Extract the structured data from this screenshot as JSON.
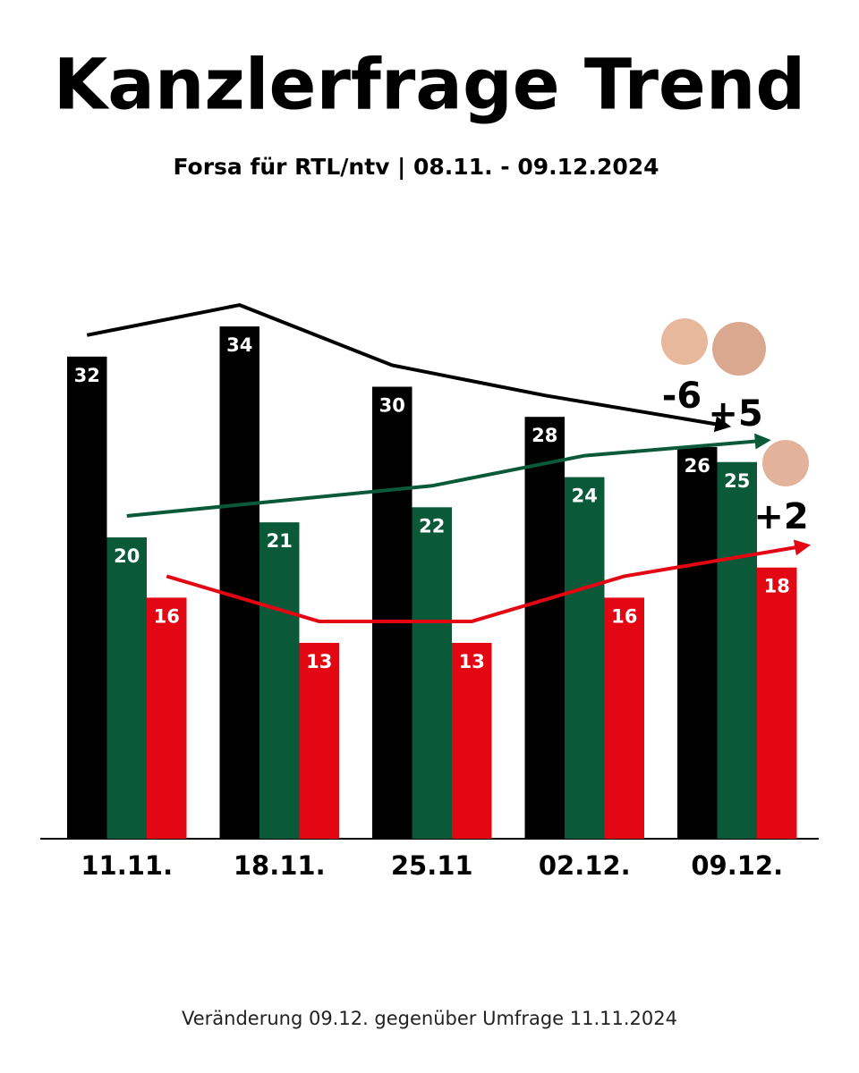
{
  "chart_data": {
    "type": "bar",
    "title": "Kanzlerfrage Trend",
    "subtitle": "Forsa für RTL/ntv | 08.11. - 09.12.2024",
    "categories": [
      "11.11.",
      "18.11.",
      "25.11",
      "02.12.",
      "09.12."
    ],
    "series": [
      {
        "color": "#000000",
        "values": [
          32,
          34,
          30,
          28,
          26
        ]
      },
      {
        "color": "#0a5a3a",
        "values": [
          20,
          21,
          22,
          24,
          25
        ]
      },
      {
        "color": "#e30613",
        "values": [
          16,
          13,
          13,
          16,
          18
        ]
      }
    ],
    "annotations": [
      "-6",
      "+5",
      "+2"
    ],
    "footnote": "Veränderung 09.12. gegenüber Umfrage 11.11.2024"
  }
}
